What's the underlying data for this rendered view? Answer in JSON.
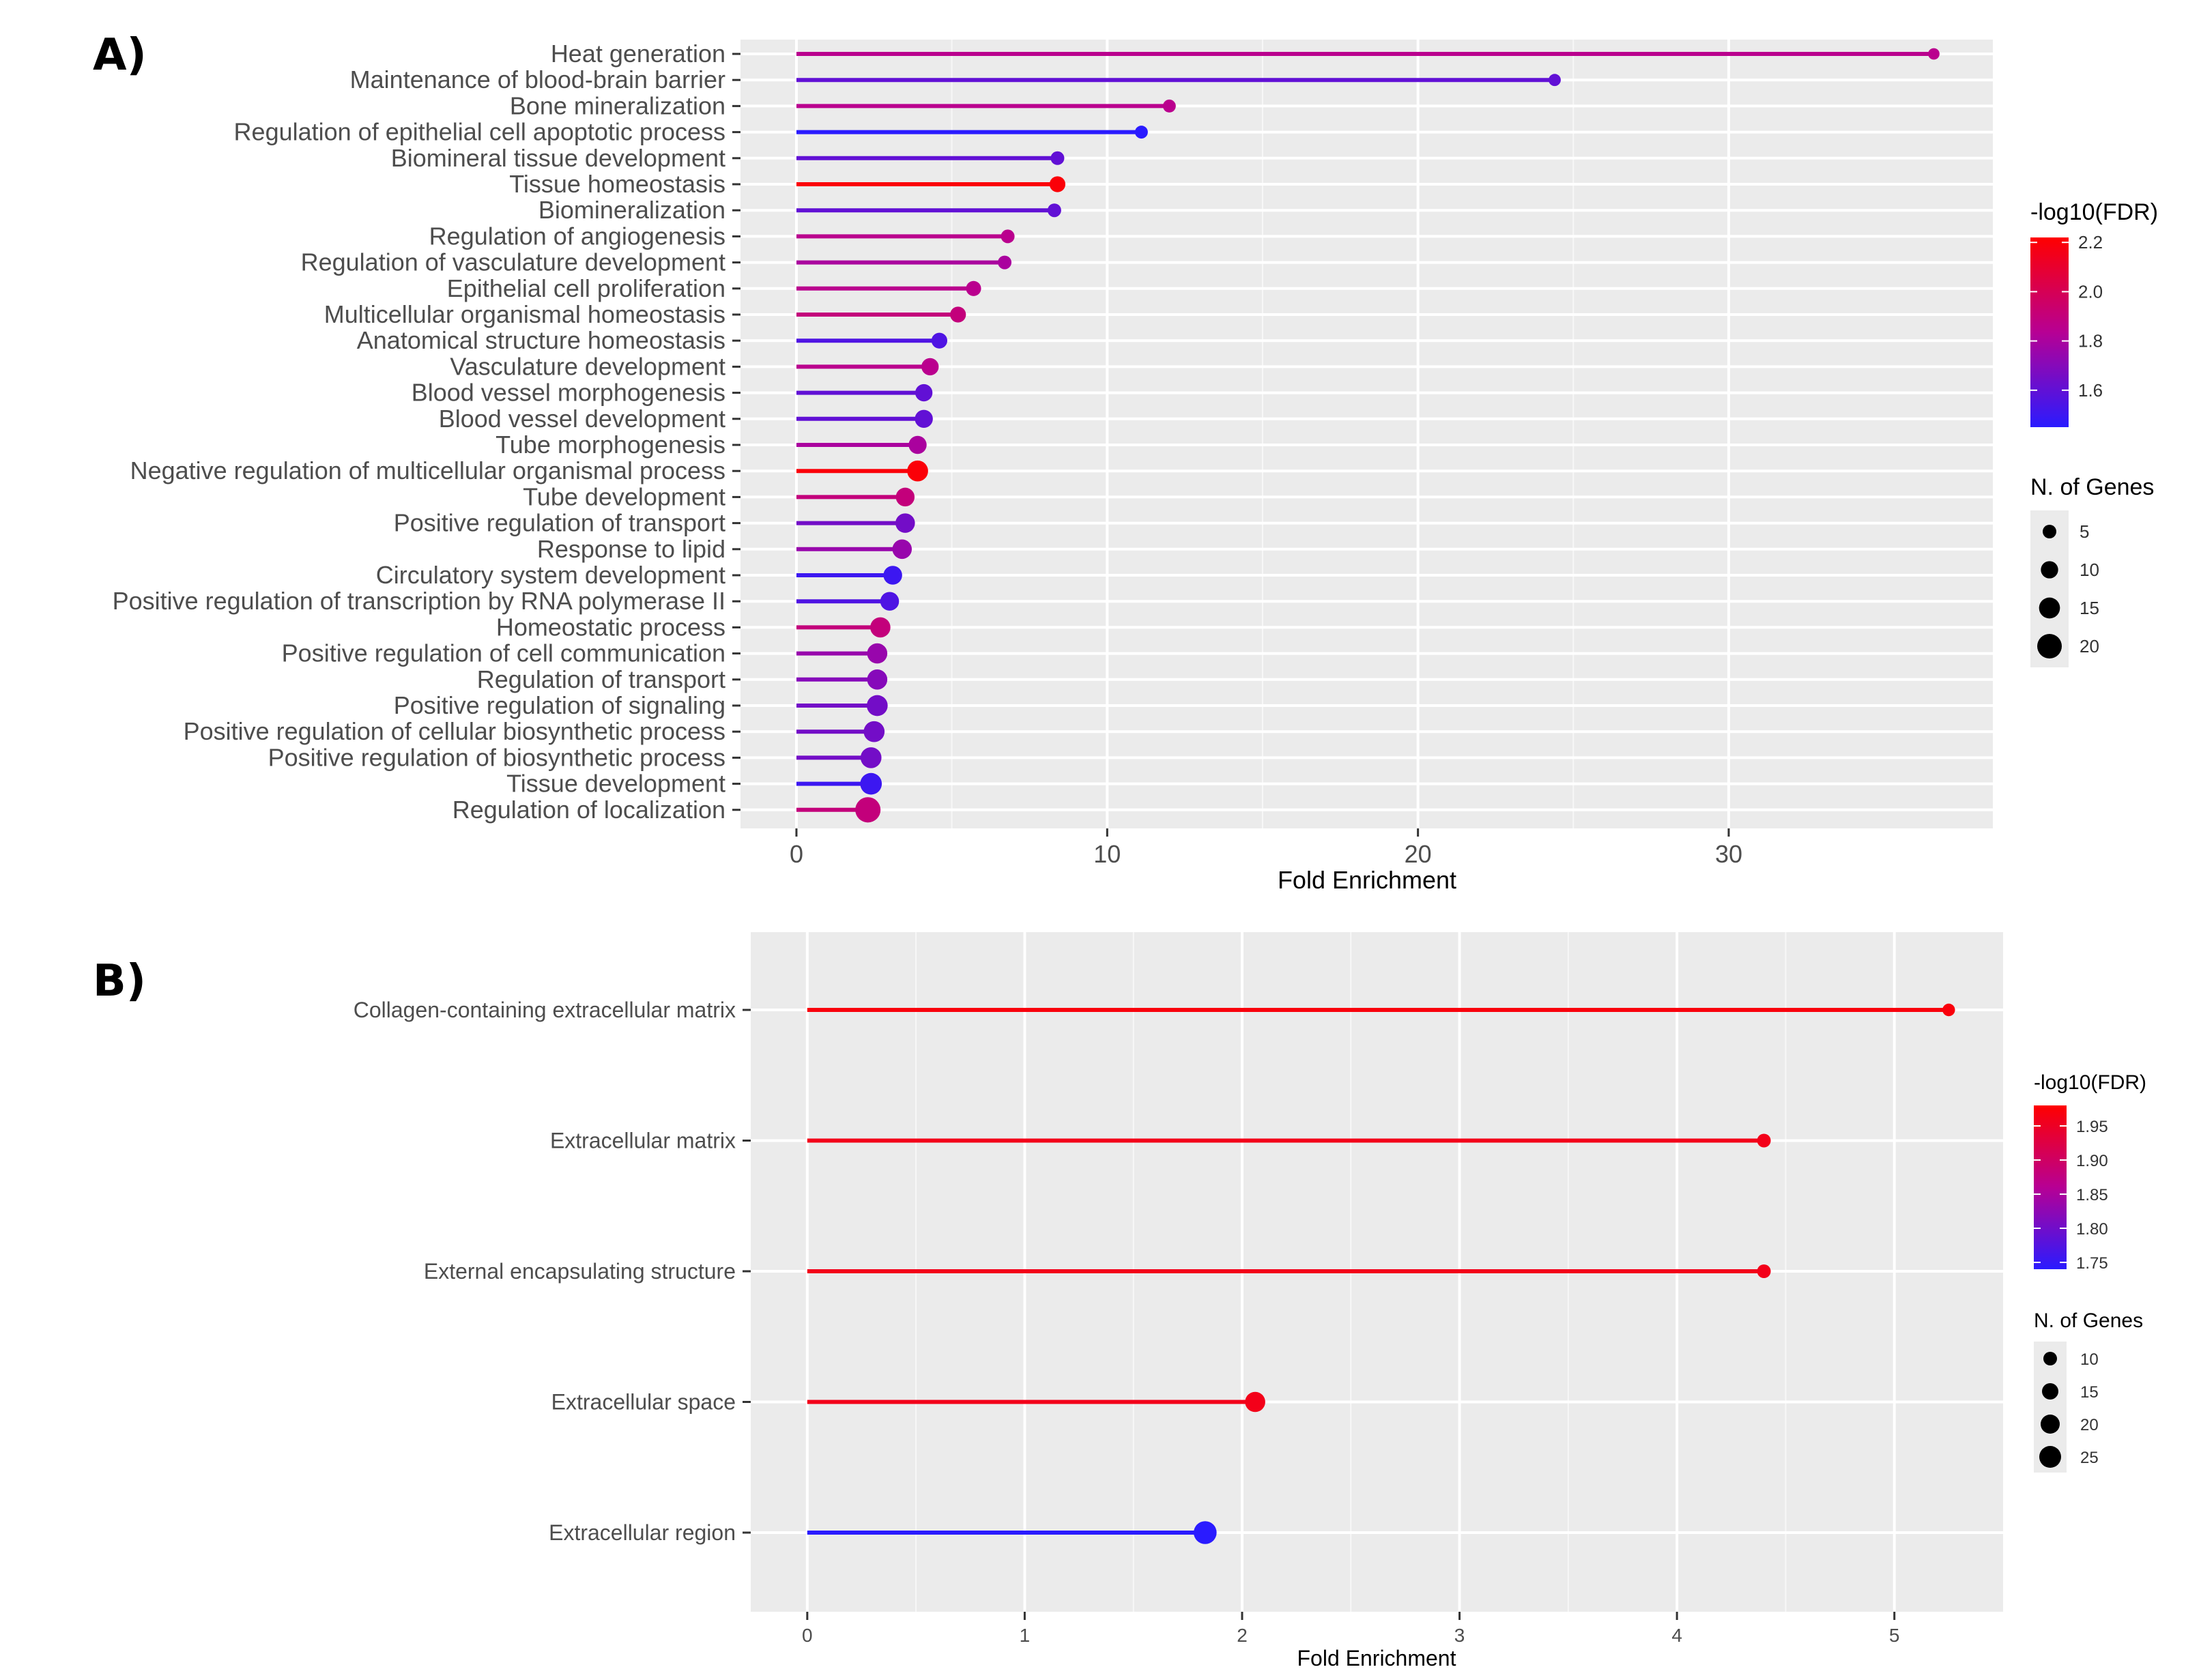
{
  "chart_data": [
    {
      "panel": "A)",
      "type": "lollipop",
      "title": "",
      "xlabel": "Fold Enrichment",
      "ylabel": "",
      "xlim": [
        -1.8,
        38.5
      ],
      "xticks": [
        0,
        10,
        20,
        30
      ],
      "xtick_labels": [
        "0",
        "10",
        "20",
        "30"
      ],
      "grid": true,
      "categories": [
        "Heat generation",
        "Maintenance of blood-brain barrier",
        "Bone mineralization",
        "Regulation of epithelial cell apoptotic process",
        "Biomineral tissue development",
        "Tissue homeostasis",
        "Biomineralization",
        "Regulation of angiogenesis",
        "Regulation of vasculature development",
        "Epithelial cell proliferation",
        "Multicellular organismal homeostasis",
        "Anatomical structure homeostasis",
        "Vasculature development",
        "Blood vessel morphogenesis",
        "Blood vessel development",
        "Tube morphogenesis",
        "Negative regulation of multicellular organismal process",
        "Tube development",
        "Positive regulation of transport",
        "Response to lipid",
        "Circulatory system development",
        "Positive regulation of transcription by RNA polymerase II",
        "Homeostatic process",
        "Positive regulation of cell communication",
        "Regulation of transport",
        "Positive regulation of signaling",
        "Positive regulation of cellular biosynthetic process",
        "Positive regulation of biosynthetic process",
        "Tissue development",
        "Regulation of localization"
      ],
      "fold_enrichment": [
        36.6,
        24.4,
        12.0,
        11.1,
        8.4,
        8.4,
        8.3,
        6.8,
        6.7,
        5.7,
        5.2,
        4.6,
        4.3,
        4.1,
        4.1,
        3.9,
        3.9,
        3.5,
        3.5,
        3.4,
        3.1,
        3.0,
        2.7,
        2.6,
        2.6,
        2.6,
        2.5,
        2.4,
        2.4,
        2.3
      ],
      "neg_log10_fdr": [
        1.85,
        1.6,
        1.85,
        1.45,
        1.6,
        2.2,
        1.6,
        1.85,
        1.8,
        1.85,
        1.9,
        1.55,
        1.85,
        1.6,
        1.6,
        1.8,
        2.2,
        1.9,
        1.65,
        1.75,
        1.5,
        1.55,
        1.9,
        1.75,
        1.7,
        1.65,
        1.65,
        1.65,
        1.5,
        1.9
      ],
      "n_genes": [
        2,
        3,
        4,
        4,
        5,
        8,
        5,
        5,
        5,
        7,
        8,
        8,
        10,
        10,
        11,
        11,
        15,
        12,
        13,
        13,
        12,
        12,
        14,
        14,
        14,
        15,
        15,
        15,
        16,
        21
      ],
      "color_legend": {
        "title": "-log10(FDR)",
        "min": 1.45,
        "max": 2.22,
        "ticks": [
          2.2,
          2.0,
          1.8,
          1.6
        ],
        "tick_labels": [
          "2.2",
          "2.0",
          "1.8",
          "1.6"
        ]
      },
      "size_legend": {
        "title": "N. of Genes",
        "values": [
          5,
          10,
          15,
          20
        ],
        "labels": [
          "5",
          "10",
          "15",
          "20"
        ]
      }
    },
    {
      "panel": "B)",
      "type": "lollipop",
      "title": "",
      "xlabel": "Fold Enrichment",
      "ylabel": "",
      "xlim": [
        -0.26,
        5.5
      ],
      "xticks": [
        0,
        1,
        2,
        3,
        4,
        5
      ],
      "xtick_labels": [
        "0",
        "1",
        "2",
        "3",
        "4",
        "5"
      ],
      "grid": true,
      "categories": [
        "Collagen-containing extracellular matrix",
        "Extracellular matrix",
        "External encapsulating structure",
        "Extracellular space",
        "Extracellular region"
      ],
      "fold_enrichment": [
        5.25,
        4.4,
        4.4,
        2.06,
        1.83
      ],
      "neg_log10_fdr": [
        1.97,
        1.96,
        1.96,
        1.96,
        1.74
      ],
      "n_genes": [
        8,
        10,
        10,
        22,
        27
      ],
      "color_legend": {
        "title": "-log10(FDR)",
        "min": 1.74,
        "max": 1.98,
        "ticks": [
          1.95,
          1.9,
          1.85,
          1.8,
          1.75
        ],
        "tick_labels": [
          "1.95",
          "1.90",
          "1.85",
          "1.80",
          "1.75"
        ]
      },
      "size_legend": {
        "title": "N. of Genes",
        "values": [
          10,
          15,
          20,
          25
        ],
        "labels": [
          "10",
          "15",
          "20",
          "25"
        ]
      }
    }
  ]
}
